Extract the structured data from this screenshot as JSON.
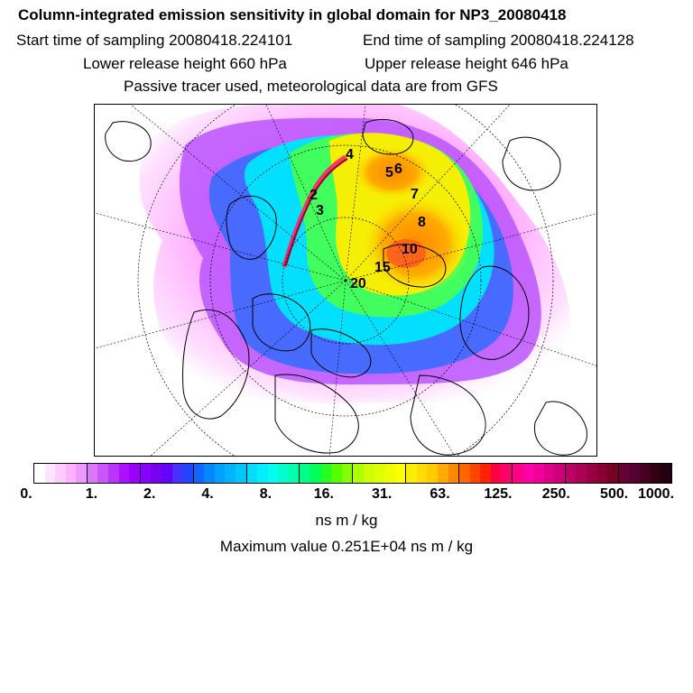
{
  "header": {
    "title": "Column-integrated emission sensitivity in global domain for NP3_20080418",
    "start_time": "Start time of sampling 20080418.224101",
    "end_time": "End time of sampling 20080418.224128",
    "lower_release": "Lower release height  660 hPa",
    "upper_release": "Upper release height  646 hPa",
    "tracer_info": "Passive tracer used, meteorological data are from GFS"
  },
  "map": {
    "markers": [
      "2",
      "3",
      "4",
      "5",
      "6",
      "7",
      "8",
      "10",
      "15",
      "20"
    ],
    "colors": {
      "pink": "#ff66ff",
      "violet": "#b44cff",
      "blue": "#3b5bff",
      "cyan": "#00e5ff",
      "green": "#33ff66",
      "yellow": "#ffee00",
      "orange": "#ff9900",
      "red": "#ff2244",
      "magenta": "#ff0099",
      "coast": "#000000"
    }
  },
  "colorbar": {
    "tick_labels": [
      "0.",
      "1.",
      "2.",
      "4.",
      "8.",
      "16.",
      "31.",
      "63.",
      "125.",
      "250.",
      "500.",
      "1000."
    ],
    "colors": [
      "#ffffff",
      "#ffe6ff",
      "#ffccff",
      "#ffb3ff",
      "#ee99ff",
      "#dd77ff",
      "#cc55ff",
      "#bb33ff",
      "#aa11ff",
      "#9900ff",
      "#8800ff",
      "#7700ee",
      "#6600ff",
      "#4433ff",
      "#2244ff",
      "#1166ff",
      "#0088ff",
      "#00a0ff",
      "#00b4ff",
      "#00c8ff",
      "#00ddff",
      "#00eeff",
      "#00ffee",
      "#00ffcc",
      "#00ffaa",
      "#00ff88",
      "#00ff55",
      "#22ff22",
      "#55ff00",
      "#88ff00",
      "#aaff00",
      "#ccff00",
      "#ddff00",
      "#eeff00",
      "#ffff00",
      "#ffee00",
      "#ffdd00",
      "#ffcc00",
      "#ffaa00",
      "#ff8800",
      "#ff6600",
      "#ff4400",
      "#ff2200",
      "#ff0044",
      "#ff0066",
      "#ff0088",
      "#ff00aa",
      "#ee0099",
      "#dd0088",
      "#cc0077",
      "#bb0066",
      "#aa0055",
      "#990044",
      "#880033",
      "#770022",
      "#660033",
      "#550033",
      "#440022",
      "#330011",
      "#220011"
    ],
    "units": "ns m / kg",
    "max_value": "Maximum value  0.251E+04 ns m / kg"
  }
}
